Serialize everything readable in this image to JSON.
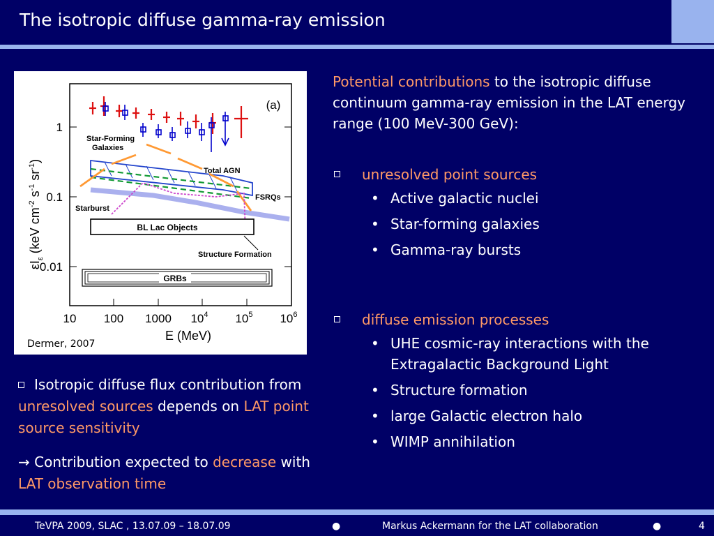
{
  "slide": {
    "title": "The isotropic diffuse gamma-ray emission",
    "page_number": "4"
  },
  "figure": {
    "caption": "Dermer, 2007",
    "panel_label": "(a)",
    "ylabel_main": "εI",
    "ylabel_sub": "ε",
    "ylabel_units": "(keV cm",
    "ylabel_exp1": "-2",
    "ylabel_s": " s",
    "ylabel_exp2": "-1",
    "ylabel_sr": " sr",
    "ylabel_exp3": "-1",
    "ylabel_close": ")",
    "xlabel": "E (MeV)",
    "y_ticks": [
      "1",
      "0.1",
      "0.01"
    ],
    "x_ticks": [
      "10",
      "100",
      "1000"
    ],
    "x_ticks_sup": [
      {
        "base": "10",
        "exp": "4"
      },
      {
        "base": "10",
        "exp": "5"
      },
      {
        "base": "10",
        "exp": "6"
      }
    ],
    "labels": {
      "star_forming_1": "Star-Forming",
      "star_forming_2": "Galaxies",
      "total_agn": "Total AGN",
      "fsrqs": "FSRQs",
      "starburst": "Starburst",
      "bl_lac": "BL Lac Objects",
      "structure_formation": "Structure Formation",
      "grbs": "GRBs"
    },
    "colors": {
      "data_red": "#dd1111",
      "data_blue": "#0000cc",
      "star_forming": "#ff9933",
      "agn": "#2244cc",
      "fsrq": "#119933",
      "structure": "#cc44cc",
      "halo": "#aab0ee"
    }
  },
  "left_notes": {
    "p1_a": "Isotropic diffuse flux contribution from ",
    "p1_hl1": "unresolved sources",
    "p1_b": " depends on ",
    "p1_hl2": "LAT point source sensitivity",
    "p2_arrow": "→",
    "p2_a": " Contribution expected to ",
    "p2_hl1": "decrease",
    "p2_b": " with ",
    "p2_hl2": "LAT observation time"
  },
  "right": {
    "intro_hl": "Potential contributions",
    "intro_rest": " to the isotropic diffuse continuum gamma-ray emission in the LAT energy range (100 MeV-300 GeV):",
    "group1": {
      "heading": "unresolved point sources",
      "items": [
        "Active galactic nuclei",
        "Star-forming galaxies",
        "Gamma-ray bursts"
      ]
    },
    "group2": {
      "heading": "diffuse emission processes",
      "items": [
        "UHE cosmic-ray interactions with the Extragalactic Background Light",
        "Structure formation",
        "large Galactic electron halo",
        "WIMP annihilation"
      ]
    },
    "bullet_glyph": "•"
  },
  "footer": {
    "left": "TeVPA 2009, SLAC , 13.07.09 – 18.07.09",
    "separator": "●",
    "center": "Markus Ackermann for the LAT collaboration"
  },
  "theme": {
    "background": "#000066",
    "accent_bar": "#99b3ee",
    "highlight": "#ff9966"
  }
}
